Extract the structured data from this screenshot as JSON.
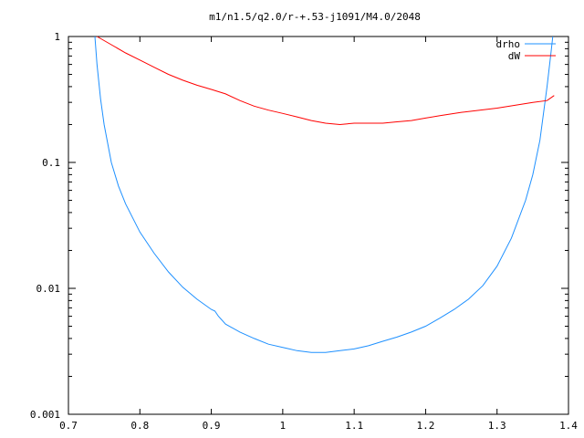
{
  "chart_data": {
    "type": "line",
    "title": "m1/n1.5/q2.0/r-+.53-j1091/M4.0/2048",
    "xlabel": "",
    "ylabel": "",
    "xlim": [
      0.7,
      1.4
    ],
    "ylim": [
      0.001,
      1
    ],
    "yscale": "log",
    "grid": false,
    "legend_position": "top-right",
    "x_ticks": [
      0.7,
      0.8,
      0.9,
      1,
      1.1,
      1.2,
      1.3,
      1.4
    ],
    "x_tick_labels": [
      "0.7",
      "0.8",
      "0.9",
      "1",
      "1.1",
      "1.2",
      "1.3",
      "1.4"
    ],
    "y_ticks": [
      0.001,
      0.01,
      0.1,
      1
    ],
    "y_tick_labels": [
      "0.001",
      "0.01",
      "0.1",
      "1"
    ],
    "series": [
      {
        "name": "drho",
        "color": "#1e90ff",
        "x": [
          0.737,
          0.74,
          0.745,
          0.75,
          0.76,
          0.77,
          0.78,
          0.8,
          0.82,
          0.84,
          0.86,
          0.88,
          0.9,
          0.905,
          0.91,
          0.92,
          0.94,
          0.96,
          0.98,
          1.0,
          1.02,
          1.04,
          1.06,
          1.08,
          1.1,
          1.12,
          1.14,
          1.16,
          1.18,
          1.2,
          1.22,
          1.24,
          1.26,
          1.28,
          1.3,
          1.32,
          1.34,
          1.35,
          1.36,
          1.37,
          1.375,
          1.378
        ],
        "values": [
          1.0,
          0.6,
          0.32,
          0.2,
          0.1,
          0.065,
          0.047,
          0.028,
          0.019,
          0.0135,
          0.0102,
          0.0082,
          0.0068,
          0.0066,
          0.006,
          0.0052,
          0.0045,
          0.004,
          0.0036,
          0.0034,
          0.0032,
          0.0031,
          0.0031,
          0.0032,
          0.0033,
          0.0035,
          0.0038,
          0.0041,
          0.0045,
          0.005,
          0.0058,
          0.0068,
          0.0082,
          0.0105,
          0.015,
          0.025,
          0.05,
          0.08,
          0.15,
          0.4,
          0.7,
          1.0
        ]
      },
      {
        "name": "dW",
        "color": "#ff0000",
        "x": [
          0.74,
          0.76,
          0.78,
          0.8,
          0.82,
          0.84,
          0.86,
          0.88,
          0.9,
          0.92,
          0.94,
          0.96,
          0.98,
          1.0,
          1.02,
          1.04,
          1.06,
          1.08,
          1.1,
          1.12,
          1.14,
          1.16,
          1.18,
          1.2,
          1.22,
          1.25,
          1.3,
          1.35,
          1.37,
          1.38
        ],
        "values": [
          1.0,
          0.86,
          0.74,
          0.65,
          0.57,
          0.5,
          0.45,
          0.41,
          0.38,
          0.35,
          0.31,
          0.28,
          0.26,
          0.245,
          0.23,
          0.215,
          0.205,
          0.2,
          0.205,
          0.205,
          0.205,
          0.21,
          0.215,
          0.225,
          0.235,
          0.25,
          0.27,
          0.3,
          0.31,
          0.34
        ]
      }
    ]
  }
}
